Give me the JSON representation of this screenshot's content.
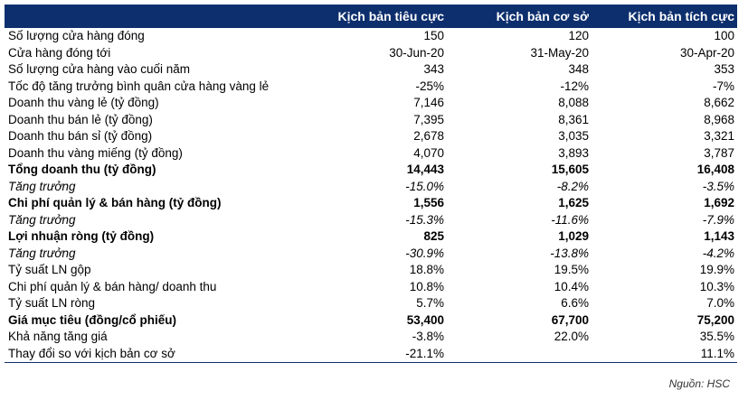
{
  "header": {
    "label": "",
    "col1": "Kịch bản tiêu cực",
    "col2": "Kịch bản cơ sở",
    "col3": "Kịch bản tích cực"
  },
  "rows": [
    {
      "label": "Số lượng cửa hàng đóng",
      "v1": "150",
      "v2": "120",
      "v3": "100",
      "style": ""
    },
    {
      "label": "Cửa hàng đóng tới",
      "v1": "30-Jun-20",
      "v2": "31-May-20",
      "v3": "30-Apr-20",
      "style": ""
    },
    {
      "label": "Số lượng cửa hàng vào cuối năm",
      "v1": "343",
      "v2": "348",
      "v3": "353",
      "style": ""
    },
    {
      "label": "Tốc độ tăng trưởng bình quân cửa hàng vàng lẻ",
      "v1": "-25%",
      "v2": "-12%",
      "v3": "-7%",
      "style": ""
    },
    {
      "label": "Doanh thu vàng lẻ (tỷ đồng)",
      "v1": "7,146",
      "v2": "8,088",
      "v3": "8,662",
      "style": ""
    },
    {
      "label": "Doanh thu bán lẻ (tỷ đồng)",
      "v1": "7,395",
      "v2": "8,361",
      "v3": "8,968",
      "style": ""
    },
    {
      "label": "Doanh thu bán sỉ (tỷ đồng)",
      "v1": "2,678",
      "v2": "3,035",
      "v3": "3,321",
      "style": ""
    },
    {
      "label": "Doanh thu vàng miếng (tỷ đồng)",
      "v1": "4,070",
      "v2": "3,893",
      "v3": "3,787",
      "style": ""
    },
    {
      "label": "Tổng doanh thu (tỷ đồng)",
      "v1": "14,443",
      "v2": "15,605",
      "v3": "16,408",
      "style": "bold"
    },
    {
      "label": "Tăng trưởng",
      "v1": "-15.0%",
      "v2": "-8.2%",
      "v3": "-3.5%",
      "style": "italic"
    },
    {
      "label": "Chi phí quản lý & bán hàng (tỷ đồng)",
      "v1": "1,556",
      "v2": "1,625",
      "v3": "1,692",
      "style": "bold"
    },
    {
      "label": "Tăng trưởng",
      "v1": "-15.3%",
      "v2": "-11.6%",
      "v3": "-7.9%",
      "style": "italic"
    },
    {
      "label": "Lợi nhuận ròng (tỷ đồng)",
      "v1": "825",
      "v2": "1,029",
      "v3": "1,143",
      "style": "bold"
    },
    {
      "label": "Tăng trưởng",
      "v1": "-30.9%",
      "v2": "-13.8%",
      "v3": "-4.2%",
      "style": "italic"
    },
    {
      "label": "Tỷ suất LN gộp",
      "v1": "18.8%",
      "v2": "19.5%",
      "v3": "19.9%",
      "style": ""
    },
    {
      "label": "Chi phí quản lý & bán hàng/ doanh thu",
      "v1": "10.8%",
      "v2": "10.4%",
      "v3": "10.3%",
      "style": ""
    },
    {
      "label": "Tỷ suất LN ròng",
      "v1": "5.7%",
      "v2": "6.6%",
      "v3": "7.0%",
      "style": ""
    },
    {
      "label": "Giá mục tiêu (đồng/cổ phiếu)",
      "v1": "53,400",
      "v2": "67,700",
      "v3": "75,200",
      "style": "bold"
    },
    {
      "label": "Khả năng tăng giá",
      "v1": "-3.8%",
      "v2": "22.0%",
      "v3": "35.5%",
      "style": ""
    },
    {
      "label": "Thay đổi so với kịch bản cơ sở",
      "v1": "-21.1%",
      "v2": "",
      "v3": "11.1%",
      "style": "last"
    }
  ],
  "source": "Nguồn: HSC",
  "colors": {
    "header_bg": "#0d2f6d",
    "header_text": "#ffffff"
  }
}
